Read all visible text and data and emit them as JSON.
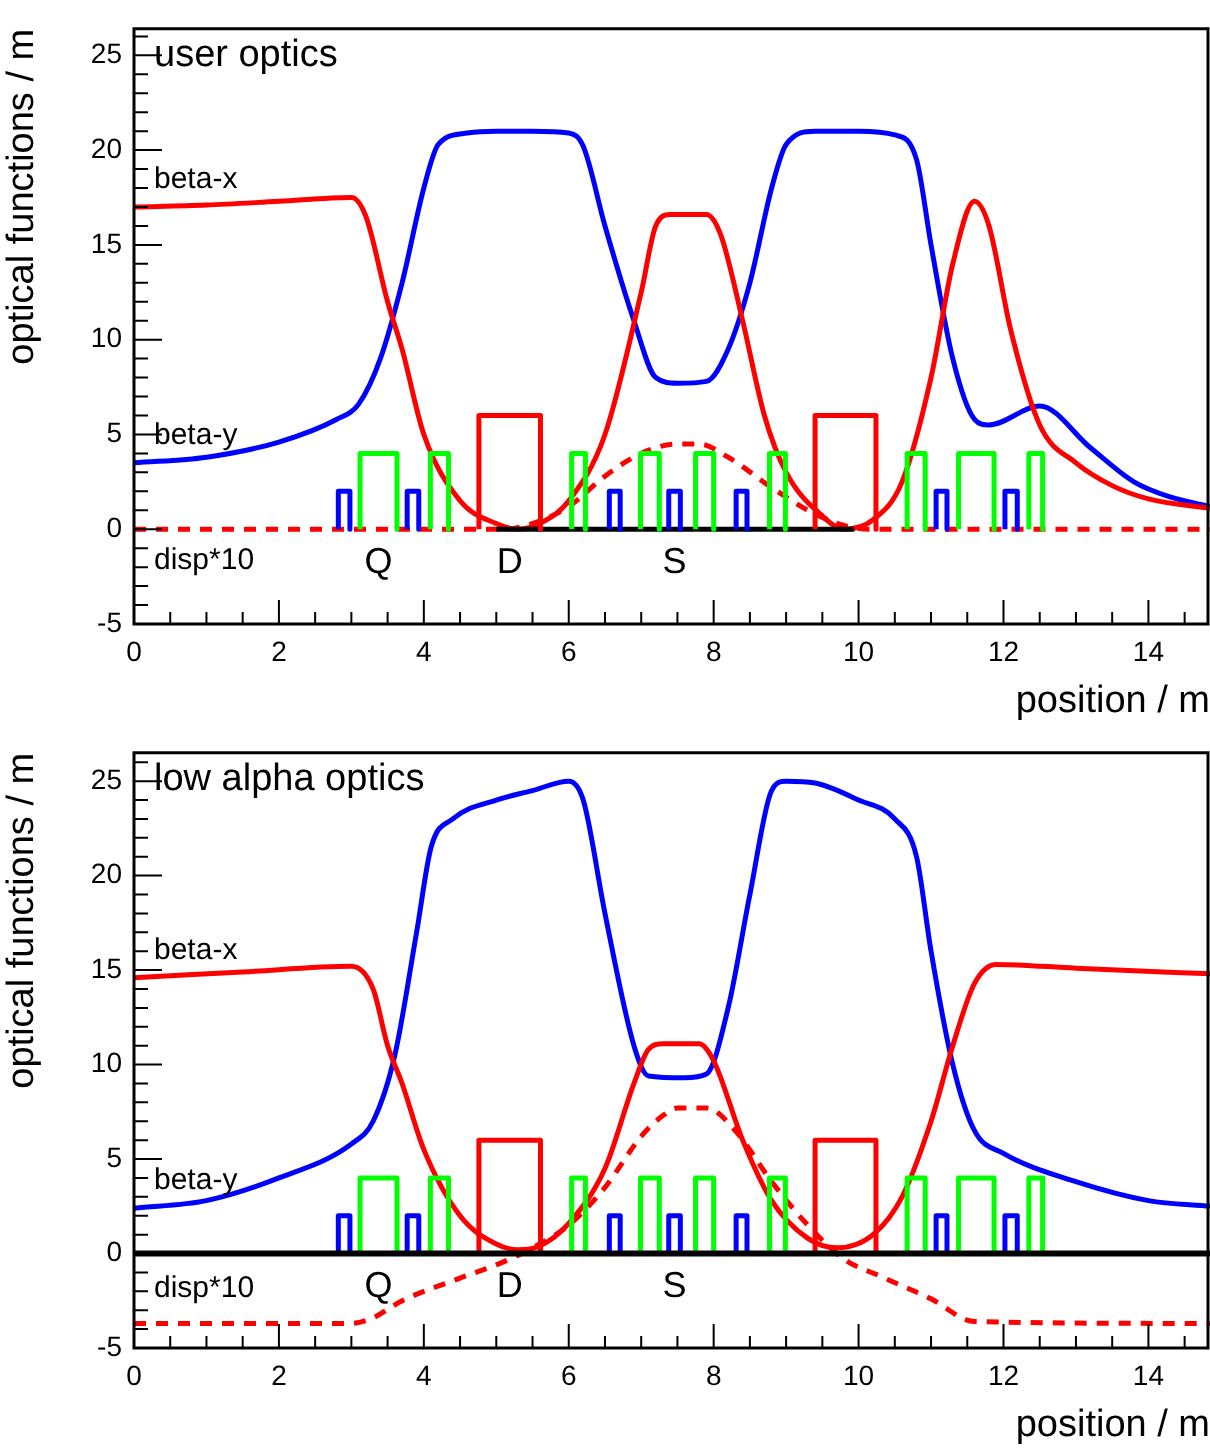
{
  "chart_data": [
    {
      "type": "line",
      "title": "user optics",
      "xlabel": "position / m",
      "ylabel": "optical functions / m",
      "xlim": [
        0,
        14.85
      ],
      "ylim": [
        -5,
        26.4
      ],
      "xticks": [
        0,
        {
          "value": 0.5,
          "label": null
        },
        {
          "value": 1,
          "label": null
        },
        {
          "value": 1.5,
          "label": null
        },
        2,
        {
          "value": 2.5,
          "label": null
        },
        {
          "value": 3,
          "label": null
        },
        {
          "value": 3.5,
          "label": null
        },
        4,
        {
          "value": 4.5,
          "label": null
        },
        {
          "value": 5,
          "label": null
        },
        {
          "value": 5.5,
          "label": null
        },
        6,
        {
          "value": 6.5,
          "label": null
        },
        {
          "value": 7,
          "label": null
        },
        {
          "value": 7.5,
          "label": null
        },
        8,
        {
          "value": 8.5,
          "label": null
        },
        {
          "value": 9,
          "label": null
        },
        {
          "value": 9.5,
          "label": null
        },
        10,
        {
          "value": 10.5,
          "label": null
        },
        {
          "value": 11,
          "label": null
        },
        {
          "value": 11.5,
          "label": null
        },
        12,
        {
          "value": 12.5,
          "label": null
        },
        {
          "value": 13,
          "label": null
        },
        {
          "value": 13.5,
          "label": null
        },
        14,
        {
          "value": 14.5,
          "label": null
        }
      ],
      "yticks": [
        -5,
        {
          "value": -4,
          "label": null
        },
        {
          "value": -3,
          "label": null
        },
        {
          "value": -2,
          "label": null
        },
        {
          "value": -1,
          "label": null
        },
        0,
        {
          "value": 1,
          "label": null
        },
        {
          "value": 2,
          "label": null
        },
        {
          "value": 3,
          "label": null
        },
        {
          "value": 4,
          "label": null
        },
        5,
        {
          "value": 6,
          "label": null
        },
        {
          "value": 7,
          "label": null
        },
        {
          "value": 8,
          "label": null
        },
        {
          "value": 9,
          "label": null
        },
        10,
        {
          "value": 11,
          "label": null
        },
        {
          "value": 12,
          "label": null
        },
        {
          "value": 13,
          "label": null
        },
        {
          "value": 14,
          "label": null
        },
        15,
        {
          "value": 16,
          "label": null
        },
        {
          "value": 17,
          "label": null
        },
        {
          "value": 18,
          "label": null
        },
        {
          "value": 19,
          "label": null
        },
        20,
        {
          "value": 21,
          "label": null
        },
        {
          "value": 22,
          "label": null
        },
        {
          "value": 23,
          "label": null
        },
        {
          "value": 24,
          "label": null
        },
        25,
        {
          "value": 26,
          "label": null
        }
      ],
      "series": [
        {
          "color": "#0000ff",
          "x": [
            2.82,
            2.82,
            2.98,
            2.98
          ],
          "values": [
            0,
            2,
            2,
            0
          ]
        },
        {
          "color": "#0000ff",
          "x": [
            3.77,
            3.77,
            3.93,
            3.93
          ],
          "values": [
            0,
            2,
            2,
            0
          ]
        },
        {
          "color": "#0000ff",
          "x": [
            6.56,
            6.56,
            6.71,
            6.71
          ],
          "values": [
            0,
            2,
            2,
            0
          ]
        },
        {
          "name": "S",
          "color": "#0000ff",
          "x": [
            7.38,
            7.38,
            7.54,
            7.54
          ],
          "values": [
            0,
            2,
            2,
            0
          ]
        },
        {
          "color": "#0000ff",
          "x": [
            8.31,
            8.31,
            8.46,
            8.46
          ],
          "values": [
            0,
            2,
            2,
            0
          ]
        },
        {
          "color": "#0000ff",
          "x": [
            11.07,
            11.07,
            11.22,
            11.22
          ],
          "values": [
            0,
            2,
            2,
            0
          ]
        },
        {
          "color": "#0000ff",
          "x": [
            12.02,
            12.02,
            12.19,
            12.19
          ],
          "values": [
            0,
            2,
            2,
            0
          ]
        },
        {
          "name": "Q",
          "color": "#00ff00",
          "x": [
            3.12,
            3.12,
            3.63,
            3.63
          ],
          "values": [
            0,
            4,
            4,
            0
          ]
        },
        {
          "color": "#00ff00",
          "x": [
            4.09,
            4.09,
            4.34,
            4.34
          ],
          "values": [
            0,
            4,
            4,
            0
          ]
        },
        {
          "color": "#00ff00",
          "x": [
            6.04,
            6.04,
            6.23,
            6.23
          ],
          "values": [
            0,
            4,
            4,
            0
          ]
        },
        {
          "color": "#00ff00",
          "x": [
            6.99,
            6.99,
            7.25,
            7.25
          ],
          "values": [
            0,
            4,
            4,
            0
          ]
        },
        {
          "color": "#00ff00",
          "x": [
            7.75,
            7.75,
            8.0,
            8.0
          ],
          "values": [
            0,
            4,
            4,
            0
          ]
        },
        {
          "color": "#00ff00",
          "x": [
            8.77,
            8.77,
            8.99,
            8.99
          ],
          "values": [
            0,
            4,
            4,
            0
          ]
        },
        {
          "color": "#00ff00",
          "x": [
            10.67,
            10.67,
            10.92,
            10.92
          ],
          "values": [
            0,
            4,
            4,
            0
          ]
        },
        {
          "color": "#00ff00",
          "x": [
            11.38,
            11.38,
            11.87,
            11.87
          ],
          "values": [
            0,
            4,
            4,
            0
          ]
        },
        {
          "color": "#00ff00",
          "x": [
            12.35,
            12.35,
            12.54,
            12.54
          ],
          "values": [
            0,
            4,
            4,
            0
          ]
        },
        {
          "name": "D",
          "color": "#ff0000",
          "x": [
            4.76,
            4.76,
            5.61,
            5.61
          ],
          "values": [
            0,
            6,
            6,
            0
          ]
        },
        {
          "color": "#ff0000",
          "x": [
            9.4,
            9.4,
            10.24,
            10.24
          ],
          "values": [
            0,
            6,
            6,
            0
          ]
        },
        {
          "color": "#000000",
          "x": [
            5.0,
            9.94
          ],
          "values": [
            0,
            0
          ]
        },
        {
          "name": "beta-x",
          "color": "#ff0000",
          "x": [
            0,
            1,
            2,
            3,
            3.2,
            3.5,
            3.7,
            4,
            4.5,
            5,
            5.3,
            5.6,
            6,
            6.5,
            7,
            7.2,
            7.4,
            7.9,
            8.1,
            8.4,
            8.7,
            9,
            9.5,
            9.8,
            10.2,
            10.6,
            11,
            11.3,
            11.6,
            11.8,
            12.1,
            12.5,
            13,
            13.5,
            14,
            14.85
          ],
          "values": [
            17,
            17.1,
            17.3,
            17.5,
            16.5,
            12,
            9.5,
            5,
            1.5,
            0.3,
            0,
            0.3,
            1.5,
            5,
            12.5,
            16,
            16.6,
            16.6,
            15.5,
            11,
            6,
            3,
            0.7,
            0,
            0.5,
            2.5,
            8,
            14,
            17.3,
            16,
            10.5,
            5.5,
            3.5,
            2.3,
            1.6,
            1.1
          ]
        },
        {
          "name": "beta-y",
          "color": "#0000ff",
          "x": [
            0,
            1,
            2,
            2.8,
            3.1,
            3.4,
            3.7,
            4,
            4.2,
            4.6,
            5,
            5.5,
            6,
            6.2,
            6.5,
            6.9,
            7.2,
            7.5,
            7.9,
            8.2,
            8.5,
            8.8,
            9,
            9.4,
            10,
            10.5,
            10.8,
            11,
            11.3,
            11.6,
            11.8,
            12.5,
            13.2,
            13.8,
            14.3,
            14.85
          ],
          "values": [
            3.5,
            3.8,
            4.6,
            5.8,
            6.6,
            9,
            13,
            18,
            20.3,
            20.9,
            21,
            21,
            20.9,
            20.2,
            16,
            11,
            8,
            7.7,
            7.8,
            9.5,
            13,
            18,
            20.3,
            21,
            21,
            20.8,
            19.5,
            15,
            9,
            5.8,
            5.5,
            6.5,
            4.3,
            2.5,
            1.7,
            1.2
          ]
        },
        {
          "name": "disp*10",
          "color": "#ff0000",
          "line_style": "dashed",
          "x": [
            0,
            5.1,
            5.5,
            6,
            6.5,
            7,
            7.5,
            7.8,
            8.2,
            8.8,
            9.3,
            9.8,
            10.2,
            14.85
          ],
          "values": [
            0,
            0,
            0.3,
            1.2,
            2.8,
            4,
            4.5,
            4.5,
            3.8,
            2.2,
            1,
            0.2,
            0,
            0
          ]
        }
      ]
    },
    {
      "type": "line",
      "title": "low alpha optics",
      "xlabel": "position / m",
      "ylabel": "optical functions / m",
      "xlim": [
        0,
        14.85
      ],
      "ylim": [
        -5,
        26.5
      ],
      "xticks": [
        0,
        {
          "value": 0.5,
          "label": null
        },
        {
          "value": 1,
          "label": null
        },
        {
          "value": 1.5,
          "label": null
        },
        2,
        {
          "value": 2.5,
          "label": null
        },
        {
          "value": 3,
          "label": null
        },
        {
          "value": 3.5,
          "label": null
        },
        4,
        {
          "value": 4.5,
          "label": null
        },
        {
          "value": 5,
          "label": null
        },
        {
          "value": 5.5,
          "label": null
        },
        6,
        {
          "value": 6.5,
          "label": null
        },
        {
          "value": 7,
          "label": null
        },
        {
          "value": 7.5,
          "label": null
        },
        8,
        {
          "value": 8.5,
          "label": null
        },
        {
          "value": 9,
          "label": null
        },
        {
          "value": 9.5,
          "label": null
        },
        10,
        {
          "value": 10.5,
          "label": null
        },
        {
          "value": 11,
          "label": null
        },
        {
          "value": 11.5,
          "label": null
        },
        12,
        {
          "value": 12.5,
          "label": null
        },
        {
          "value": 13,
          "label": null
        },
        {
          "value": 13.5,
          "label": null
        },
        14,
        {
          "value": 14.5,
          "label": null
        }
      ],
      "yticks": [
        -5,
        {
          "value": -4,
          "label": null
        },
        {
          "value": -3,
          "label": null
        },
        {
          "value": -2,
          "label": null
        },
        {
          "value": -1,
          "label": null
        },
        0,
        {
          "value": 1,
          "label": null
        },
        {
          "value": 2,
          "label": null
        },
        {
          "value": 3,
          "label": null
        },
        {
          "value": 4,
          "label": null
        },
        5,
        {
          "value": 6,
          "label": null
        },
        {
          "value": 7,
          "label": null
        },
        {
          "value": 8,
          "label": null
        },
        {
          "value": 9,
          "label": null
        },
        10,
        {
          "value": 11,
          "label": null
        },
        {
          "value": 12,
          "label": null
        },
        {
          "value": 13,
          "label": null
        },
        {
          "value": 14,
          "label": null
        },
        15,
        {
          "value": 16,
          "label": null
        },
        {
          "value": 17,
          "label": null
        },
        {
          "value": 18,
          "label": null
        },
        {
          "value": 19,
          "label": null
        },
        20,
        {
          "value": 21,
          "label": null
        },
        {
          "value": 22,
          "label": null
        },
        {
          "value": 23,
          "label": null
        },
        {
          "value": 24,
          "label": null
        },
        25,
        {
          "value": 26,
          "label": null
        }
      ],
      "ref_lines": [
        {
          "axis": "y",
          "value": 0,
          "color": "#000000"
        }
      ],
      "series": [
        {
          "color": "#0000ff",
          "x": [
            2.82,
            2.82,
            2.98,
            2.98
          ],
          "values": [
            0,
            2,
            2,
            0
          ]
        },
        {
          "color": "#0000ff",
          "x": [
            3.77,
            3.77,
            3.93,
            3.93
          ],
          "values": [
            0,
            2,
            2,
            0
          ]
        },
        {
          "color": "#0000ff",
          "x": [
            6.56,
            6.56,
            6.71,
            6.71
          ],
          "values": [
            0,
            2,
            2,
            0
          ]
        },
        {
          "name": "S",
          "color": "#0000ff",
          "x": [
            7.38,
            7.38,
            7.54,
            7.54
          ],
          "values": [
            0,
            2,
            2,
            0
          ]
        },
        {
          "color": "#0000ff",
          "x": [
            8.31,
            8.31,
            8.46,
            8.46
          ],
          "values": [
            0,
            2,
            2,
            0
          ]
        },
        {
          "color": "#0000ff",
          "x": [
            11.07,
            11.07,
            11.22,
            11.22
          ],
          "values": [
            0,
            2,
            2,
            0
          ]
        },
        {
          "color": "#0000ff",
          "x": [
            12.02,
            12.02,
            12.19,
            12.19
          ],
          "values": [
            0,
            2,
            2,
            0
          ]
        },
        {
          "name": "Q",
          "color": "#00ff00",
          "x": [
            3.12,
            3.12,
            3.63,
            3.63
          ],
          "values": [
            0,
            4,
            4,
            0
          ]
        },
        {
          "color": "#00ff00",
          "x": [
            4.09,
            4.09,
            4.34,
            4.34
          ],
          "values": [
            0,
            4,
            4,
            0
          ]
        },
        {
          "color": "#00ff00",
          "x": [
            6.04,
            6.04,
            6.23,
            6.23
          ],
          "values": [
            0,
            4,
            4,
            0
          ]
        },
        {
          "color": "#00ff00",
          "x": [
            6.99,
            6.99,
            7.25,
            7.25
          ],
          "values": [
            0,
            4,
            4,
            0
          ]
        },
        {
          "color": "#00ff00",
          "x": [
            7.75,
            7.75,
            8.0,
            8.0
          ],
          "values": [
            0,
            4,
            4,
            0
          ]
        },
        {
          "color": "#00ff00",
          "x": [
            8.77,
            8.77,
            8.99,
            8.99
          ],
          "values": [
            0,
            4,
            4,
            0
          ]
        },
        {
          "color": "#00ff00",
          "x": [
            10.67,
            10.67,
            10.92,
            10.92
          ],
          "values": [
            0,
            4,
            4,
            0
          ]
        },
        {
          "color": "#00ff00",
          "x": [
            11.38,
            11.38,
            11.87,
            11.87
          ],
          "values": [
            0,
            4,
            4,
            0
          ]
        },
        {
          "color": "#00ff00",
          "x": [
            12.35,
            12.35,
            12.54,
            12.54
          ],
          "values": [
            0,
            4,
            4,
            0
          ]
        },
        {
          "name": "D",
          "color": "#ff0000",
          "x": [
            4.76,
            4.76,
            5.61,
            5.61
          ],
          "values": [
            0,
            6,
            6,
            0
          ]
        },
        {
          "color": "#ff0000",
          "x": [
            9.4,
            9.4,
            10.24,
            10.24
          ],
          "values": [
            0,
            6,
            6,
            0
          ]
        },
        {
          "name": "beta-x",
          "color": "#ff0000",
          "x": [
            0,
            1.5,
            3,
            3.3,
            3.5,
            3.7,
            4,
            4.5,
            5,
            5.3,
            5.6,
            6,
            6.5,
            6.9,
            7.1,
            7.3,
            7.8,
            8,
            8.4,
            8.8,
            9.3,
            9.7,
            10.2,
            10.6,
            11,
            11.3,
            11.6,
            11.9,
            13,
            14.85
          ],
          "values": [
            14.6,
            14.9,
            15.2,
            14,
            11,
            9,
            5.5,
            2,
            0.5,
            0.2,
            0.4,
            1.6,
            4.5,
            9,
            10.8,
            11.1,
            11.1,
            10.2,
            6,
            2.8,
            0.8,
            0.3,
            1,
            3,
            7,
            11,
            14.3,
            15.3,
            15.1,
            14.8
          ]
        },
        {
          "name": "beta-y",
          "color": "#0000ff",
          "x": [
            0,
            1,
            2,
            3,
            3.3,
            3.6,
            3.9,
            4.1,
            4.4,
            5,
            5.5,
            6,
            6.2,
            6.5,
            6.9,
            7.1,
            7.6,
            7.9,
            8.2,
            8.5,
            8.8,
            9,
            9.4,
            10,
            10.5,
            10.8,
            11,
            11.3,
            11.6,
            12,
            13,
            14,
            14.85
          ],
          "values": [
            2.4,
            2.8,
            4,
            5.8,
            7,
            10.5,
            17,
            21.5,
            23,
            24,
            24.5,
            25,
            24,
            18,
            11,
            9.4,
            9.3,
            9.5,
            13,
            19,
            24.5,
            25,
            24.9,
            24,
            23,
            21,
            16,
            10,
            6.5,
            5.3,
            3.8,
            2.8,
            2.5
          ]
        },
        {
          "name": "disp*10",
          "color": "#ff0000",
          "line_style": "dashed",
          "x": [
            0,
            3,
            3.3,
            3.7,
            4.5,
            5,
            5.5,
            6,
            6.5,
            7,
            7.3,
            7.5,
            7.9,
            8.3,
            8.8,
            9.3,
            9.8,
            10.3,
            11,
            11.6,
            14.85
          ],
          "values": [
            -3.7,
            -3.7,
            -3.4,
            -2.5,
            -1.3,
            -0.6,
            0.3,
            1.5,
            3.5,
            6.2,
            7.3,
            7.7,
            7.7,
            6.5,
            3.8,
            1.5,
            -0.3,
            -1.2,
            -2.4,
            -3.6,
            -3.7
          ]
        }
      ]
    }
  ]
}
